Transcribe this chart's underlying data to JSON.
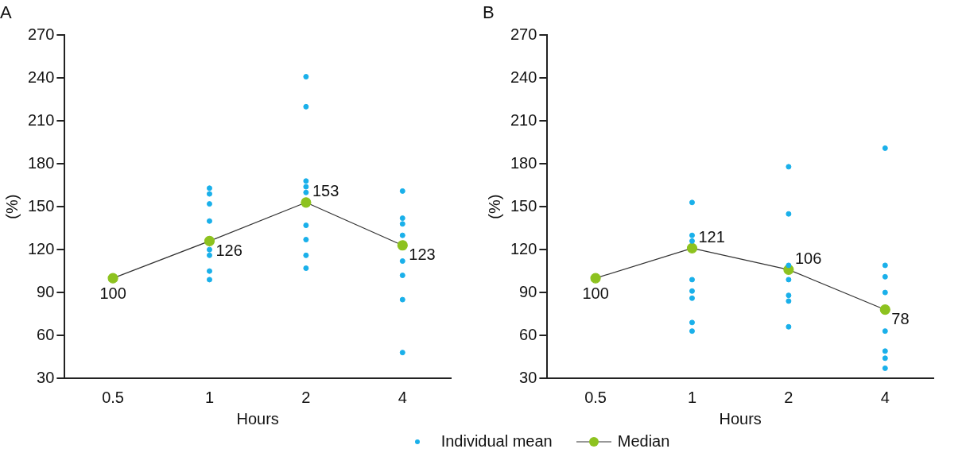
{
  "chart_data": [
    {
      "type": "line",
      "title": "A",
      "xlabel": "Hours",
      "ylabel": "(%)",
      "categories": [
        "0.5",
        "1",
        "2",
        "4"
      ],
      "ylim": [
        30,
        270
      ],
      "yticks": [
        30,
        60,
        90,
        120,
        150,
        180,
        210,
        240,
        270
      ],
      "grid": false,
      "legend": "bottom",
      "marker": "circle",
      "series": [
        {
          "type": "scatter",
          "name": "Individual mean",
          "color": "#1ab0ea",
          "x": [
            "1",
            "1",
            "1",
            "1",
            "1",
            "1",
            "1",
            "1",
            "2",
            "2",
            "2",
            "2",
            "2",
            "2",
            "2",
            "2",
            "2",
            "4",
            "4",
            "4",
            "4",
            "4",
            "4",
            "4",
            "4",
            "4"
          ],
          "values": [
            163,
            159,
            152,
            140,
            120,
            116,
            105,
            99,
            241,
            220,
            168,
            164,
            160,
            137,
            127,
            116,
            107,
            161,
            null,
            142,
            138,
            130,
            112,
            102,
            85,
            48
          ]
        },
        {
          "name": "Median",
          "color": "#8dc21f",
          "values": [
            100,
            126,
            153,
            123
          ],
          "value_labels": [
            "100",
            "126",
            "153",
            "123"
          ]
        }
      ]
    },
    {
      "type": "line",
      "title": "B",
      "xlabel": "Hours",
      "ylabel": "(%)",
      "categories": [
        "0.5",
        "1",
        "2",
        "4"
      ],
      "ylim": [
        30,
        270
      ],
      "yticks": [
        30,
        60,
        90,
        120,
        150,
        180,
        210,
        240,
        270
      ],
      "grid": false,
      "marker": "circle",
      "series": [
        {
          "type": "scatter",
          "color": "#1ab0ea",
          "x": [
            "1",
            "1",
            "1",
            "1",
            "1",
            "1",
            "1",
            "1",
            "2",
            "2",
            "2",
            "2",
            "2",
            "2",
            "2",
            "4",
            "4",
            "4",
            "4",
            "4",
            "4",
            "4",
            "4"
          ],
          "values": [
            153,
            130,
            126,
            99,
            91,
            86,
            69,
            63,
            178,
            145,
            109,
            99,
            88,
            84,
            66,
            191,
            109,
            101,
            90,
            63,
            49,
            44,
            37
          ]
        },
        {
          "color": "#8dc21f",
          "values": [
            100,
            121,
            106,
            78
          ],
          "value_labels": [
            "100",
            "121",
            "106",
            "78"
          ]
        }
      ]
    }
  ]
}
